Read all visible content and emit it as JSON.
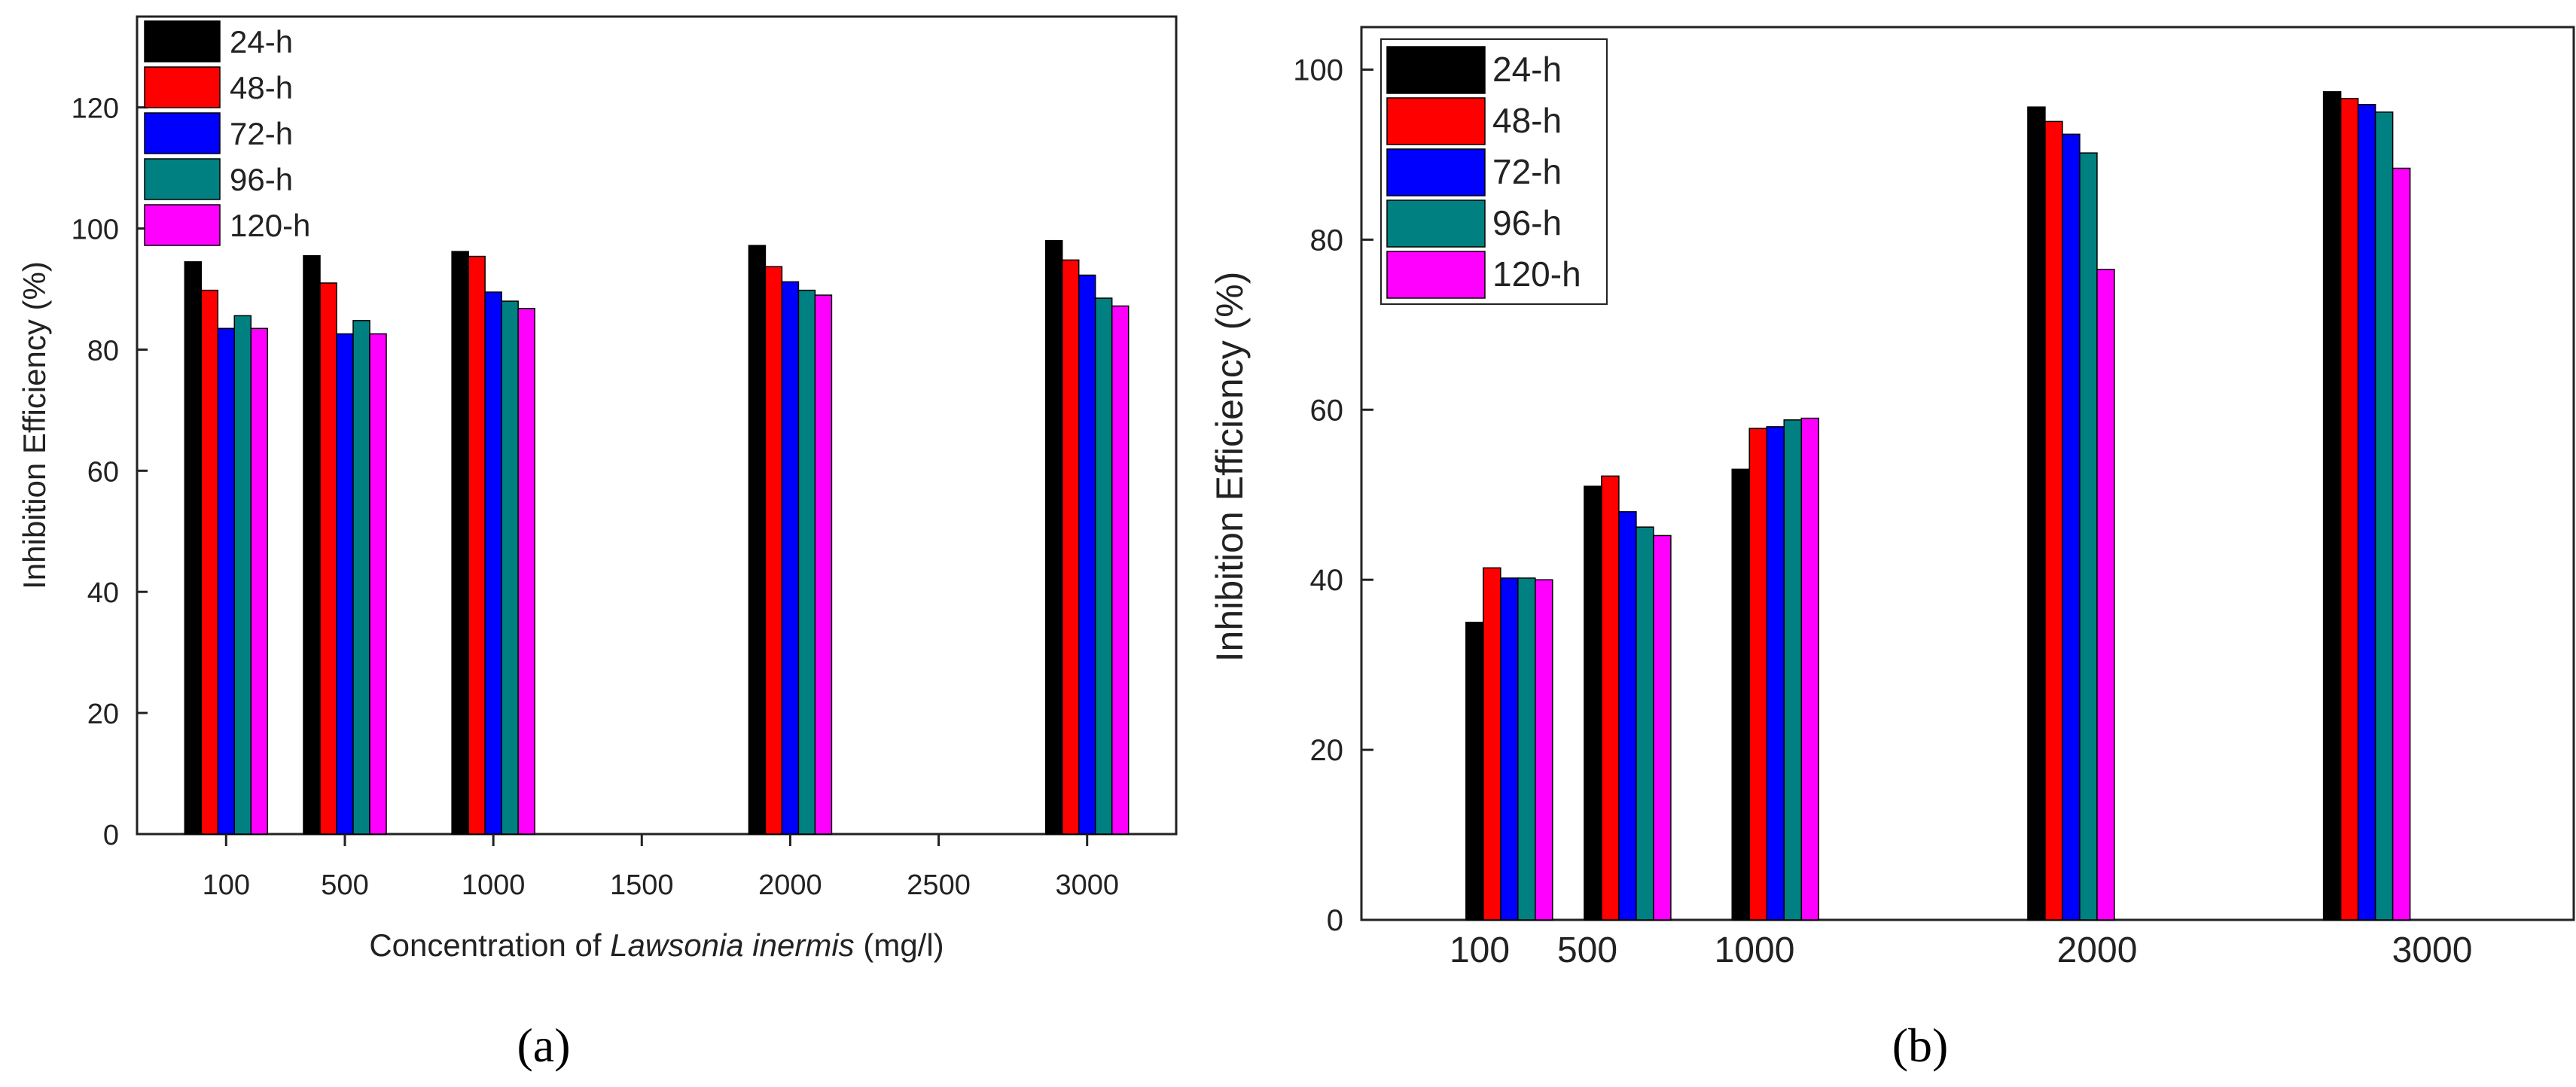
{
  "colors": {
    "series": [
      "#000000",
      "#ff0000",
      "#0000ff",
      "#008080",
      "#ff00ff"
    ]
  },
  "chart_data": [
    {
      "type": "bar",
      "panel_label": "(a)",
      "title": "",
      "xlabel_prefix": "Concentration of ",
      "xlabel_italic": "Lawsonia inermis",
      "xlabel_suffix": " (mg/l)",
      "ylabel": "Inhibition Efficiency (%)",
      "ylim": [
        0,
        135
      ],
      "xlim": [
        -200,
        3300
      ],
      "yticks": [
        0,
        20,
        40,
        60,
        80,
        100,
        120
      ],
      "xticks": [
        100,
        500,
        1000,
        1500,
        2000,
        2500,
        3000
      ],
      "xtick_labels": [
        "100",
        "500",
        "1000",
        "1500",
        "2000",
        "2500",
        "3000"
      ],
      "categories": [
        100,
        500,
        1000,
        2000,
        3000
      ],
      "legend_position": "top-left",
      "series": [
        {
          "name": "24-h",
          "values": [
            94.5,
            95.5,
            96.2,
            97.2,
            98.0
          ]
        },
        {
          "name": "48-h",
          "values": [
            89.8,
            91.0,
            95.4,
            93.7,
            94.8
          ]
        },
        {
          "name": "72-h",
          "values": [
            83.5,
            82.6,
            89.5,
            91.2,
            92.3
          ]
        },
        {
          "name": "96-h",
          "values": [
            85.6,
            84.8,
            88.0,
            89.8,
            88.5
          ]
        },
        {
          "name": "120-h",
          "values": [
            83.5,
            82.6,
            86.8,
            89.0,
            87.2
          ]
        }
      ]
    },
    {
      "type": "bar",
      "panel_label": "(b)",
      "title": "",
      "ylabel": "Inhibition Efficiency (%)",
      "ylim": [
        0,
        105
      ],
      "xlim": [
        -400,
        3700
      ],
      "yticks": [
        0,
        20,
        40,
        60,
        80,
        100
      ],
      "xtick_labels": [
        "100",
        "500",
        "1000",
        "2000",
        "3000"
      ],
      "categories": [
        100,
        500,
        1000,
        2000,
        3000
      ],
      "legend_position": "top-left",
      "series": [
        {
          "name": "24-h",
          "values": [
            35.0,
            51.0,
            53.0,
            95.6,
            97.4
          ]
        },
        {
          "name": "48-h",
          "values": [
            41.4,
            52.2,
            57.8,
            93.9,
            96.6
          ]
        },
        {
          "name": "72-h",
          "values": [
            40.2,
            48.0,
            58.0,
            92.4,
            95.9
          ]
        },
        {
          "name": "96-h",
          "values": [
            40.2,
            46.2,
            58.8,
            90.2,
            95.0
          ]
        },
        {
          "name": "120-h",
          "values": [
            40.0,
            45.2,
            59.0,
            76.5,
            88.4
          ]
        }
      ]
    }
  ]
}
